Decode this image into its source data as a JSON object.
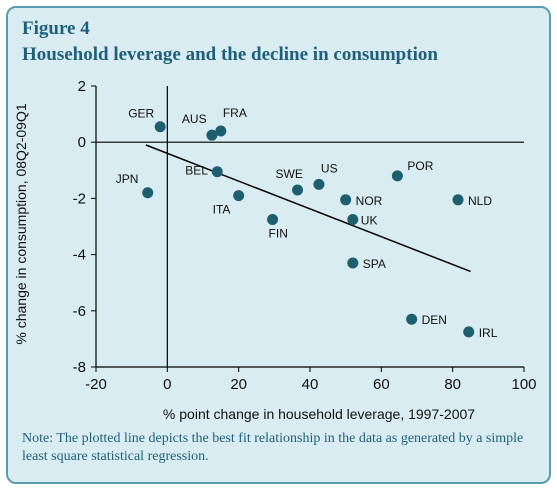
{
  "figure": {
    "label": "Figure 4",
    "title": "Household leverage and the decline in consumption",
    "note": "Note: The plotted line depicts the best fit relationship in the data as generated by a simple least square statistical regression."
  },
  "colors": {
    "background": "#d9ecf1",
    "border": "#5b9bb0",
    "heading": "#1f5f7a",
    "points": "#1e5f6f",
    "line": "#000000"
  },
  "chart_data": {
    "type": "scatter",
    "title": "",
    "xlabel": "% point change in household leverage, 1997-2007",
    "ylabel": "% change in consumption, 08Q2-09Q1",
    "xlim": [
      -20,
      100
    ],
    "ylim": [
      -8,
      2
    ],
    "xticks": [
      -20,
      0,
      20,
      40,
      60,
      80,
      100
    ],
    "yticks": [
      -8,
      -6,
      -4,
      -2,
      0,
      2
    ],
    "grid": false,
    "points": [
      {
        "label": "GER",
        "x": -2,
        "y": 0.55
      },
      {
        "label": "AUS",
        "x": 12.5,
        "y": 0.25
      },
      {
        "label": "FRA",
        "x": 15,
        "y": 0.4
      },
      {
        "label": "JPN",
        "x": -5.5,
        "y": -1.8
      },
      {
        "label": "BEL",
        "x": 14,
        "y": -1.05
      },
      {
        "label": "ITA",
        "x": 20,
        "y": -1.9
      },
      {
        "label": "SWE",
        "x": 36.5,
        "y": -1.7
      },
      {
        "label": "US",
        "x": 42.5,
        "y": -1.5
      },
      {
        "label": "POR",
        "x": 64.5,
        "y": -1.2
      },
      {
        "label": "NOR",
        "x": 50,
        "y": -2.05
      },
      {
        "label": "NLD",
        "x": 81.5,
        "y": -2.05
      },
      {
        "label": "UK",
        "x": 52,
        "y": -2.75
      },
      {
        "label": "FIN",
        "x": 29.5,
        "y": -2.75
      },
      {
        "label": "SPA",
        "x": 52,
        "y": -4.3
      },
      {
        "label": "DEN",
        "x": 68.5,
        "y": -6.3
      },
      {
        "label": "IRL",
        "x": 84.5,
        "y": -6.75
      }
    ],
    "fit_line": {
      "x": [
        -6,
        85
      ],
      "y": [
        -0.1,
        -4.6
      ]
    }
  }
}
